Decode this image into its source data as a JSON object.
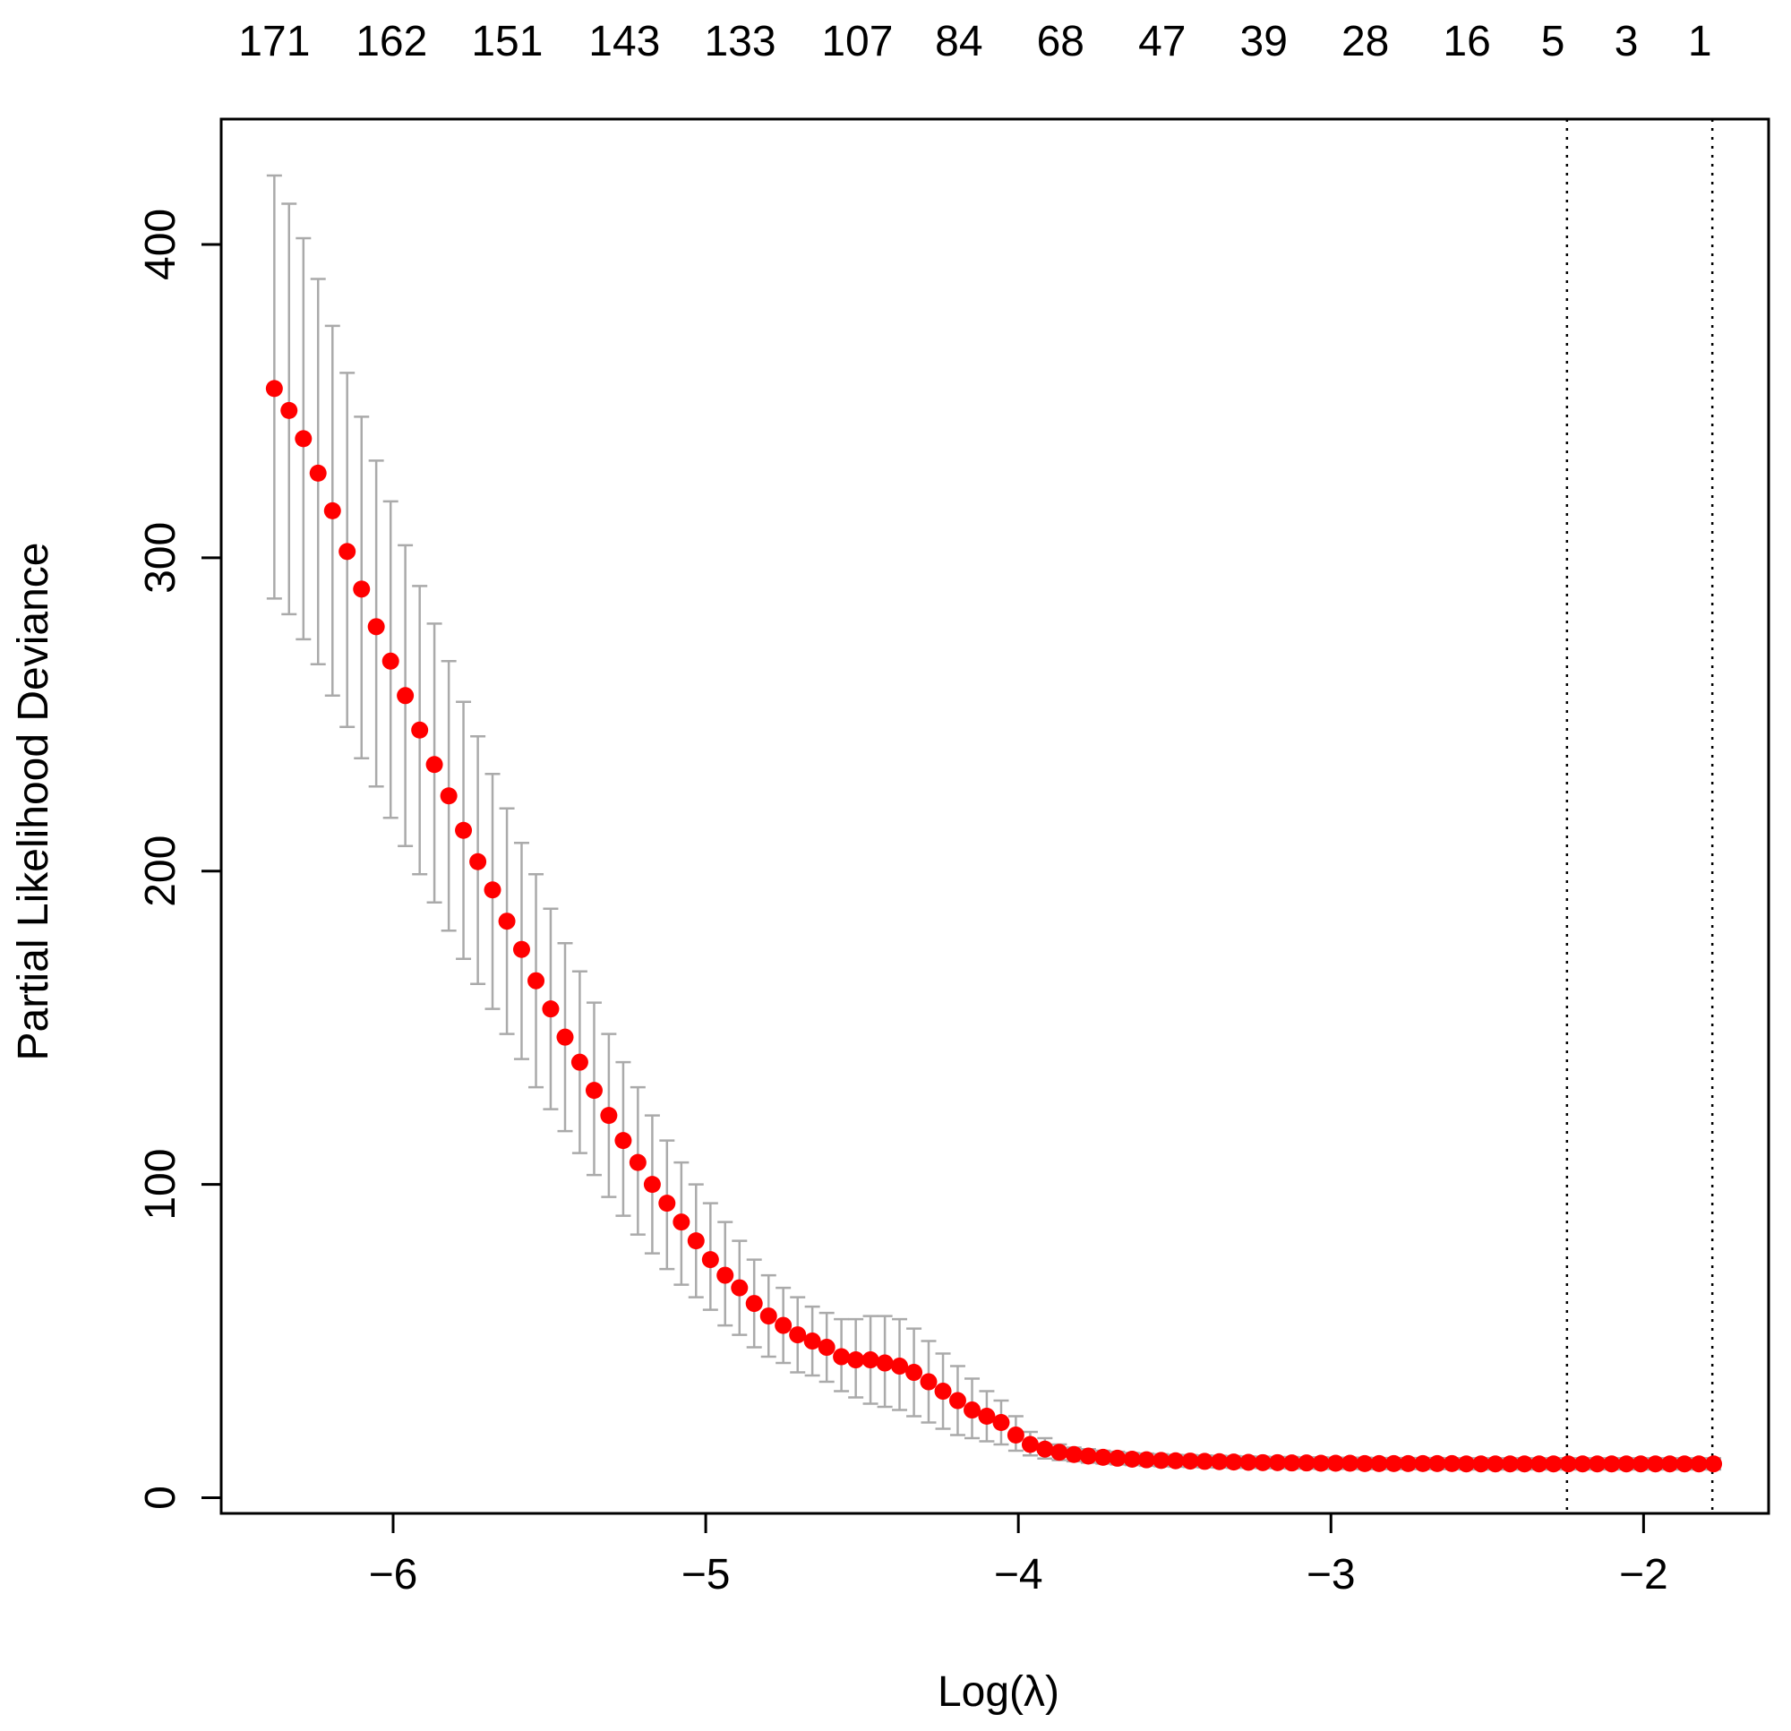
{
  "chart_data": {
    "type": "scatter",
    "title": "",
    "xlabel": "Log(λ)",
    "ylabel": "Partial Likelihood Deviance",
    "xlim": [
      -6.55,
      -1.6
    ],
    "ylim": [
      -5,
      440
    ],
    "x_ticks": [
      {
        "value": -6,
        "label": "−6"
      },
      {
        "value": -5,
        "label": "−5"
      },
      {
        "value": -4,
        "label": "−4"
      },
      {
        "value": -3,
        "label": "−3"
      },
      {
        "value": -2,
        "label": "−2"
      }
    ],
    "y_ticks": [
      {
        "value": 0,
        "label": "0"
      },
      {
        "value": 100,
        "label": "100"
      },
      {
        "value": 200,
        "label": "200"
      },
      {
        "value": 300,
        "label": "300"
      },
      {
        "value": 400,
        "label": "400"
      }
    ],
    "top_labels": [
      {
        "x": -6.38,
        "label": "171"
      },
      {
        "x": -6.005,
        "label": "162"
      },
      {
        "x": -5.635,
        "label": "151"
      },
      {
        "x": -5.26,
        "label": "143"
      },
      {
        "x": -4.89,
        "label": "133"
      },
      {
        "x": -4.515,
        "label": "107"
      },
      {
        "x": -4.19,
        "label": "84"
      },
      {
        "x": -3.865,
        "label": "68"
      },
      {
        "x": -3.54,
        "label": "47"
      },
      {
        "x": -3.215,
        "label": "39"
      },
      {
        "x": -2.89,
        "label": "28"
      },
      {
        "x": -2.565,
        "label": "16"
      },
      {
        "x": -2.29,
        "label": "5"
      },
      {
        "x": -2.055,
        "label": "3"
      },
      {
        "x": -1.82,
        "label": "1"
      }
    ],
    "vlines": [
      -2.245,
      -1.78
    ],
    "series": [
      {
        "x": [
          -6.38,
          -6.333,
          -6.287,
          -6.24,
          -6.194,
          -6.147,
          -6.101,
          -6.054,
          -6.008,
          -5.961,
          -5.915,
          -5.868,
          -5.822,
          -5.775,
          -5.729,
          -5.682,
          -5.636,
          -5.589,
          -5.543,
          -5.496,
          -5.45,
          -5.403,
          -5.357,
          -5.31,
          -5.264,
          -5.217,
          -5.171,
          -5.124,
          -5.078,
          -5.031,
          -4.985,
          -4.938,
          -4.892,
          -4.845,
          -4.799,
          -4.752,
          -4.706,
          -4.659,
          -4.613,
          -4.566,
          -4.52,
          -4.473,
          -4.427,
          -4.38,
          -4.334,
          -4.287,
          -4.241,
          -4.194,
          -4.148,
          -4.101,
          -4.055,
          -4.008,
          -3.962,
          -3.915,
          -3.869,
          -3.822,
          -3.776,
          -3.729,
          -3.683,
          -3.636,
          -3.59,
          -3.543,
          -3.497,
          -3.45,
          -3.404,
          -3.357,
          -3.311,
          -3.264,
          -3.218,
          -3.171,
          -3.125,
          -3.078,
          -3.032,
          -2.985,
          -2.939,
          -2.892,
          -2.846,
          -2.799,
          -2.753,
          -2.706,
          -2.66,
          -2.613,
          -2.567,
          -2.52,
          -2.474,
          -2.427,
          -2.381,
          -2.334,
          -2.288,
          -2.241,
          -2.195,
          -2.148,
          -2.102,
          -2.055,
          -2.009,
          -1.962,
          -1.916,
          -1.869,
          -1.823,
          -1.776
        ],
        "y": [
          354,
          347,
          338,
          327,
          315,
          302,
          290,
          278,
          267,
          256,
          245,
          234,
          224,
          213,
          203,
          194,
          184,
          175,
          165,
          156,
          147,
          139,
          130,
          122,
          114,
          107,
          100,
          94,
          88,
          82,
          76,
          71,
          67,
          62,
          58,
          55,
          52,
          50,
          48,
          45,
          44,
          44,
          43,
          42,
          40,
          37,
          34,
          31,
          28,
          26,
          24,
          20,
          17,
          15.5,
          14.5,
          13.8,
          13.3,
          12.9,
          12.6,
          12.3,
          12.1,
          11.9,
          11.8,
          11.7,
          11.6,
          11.5,
          11.4,
          11.3,
          11.2,
          11.2,
          11.1,
          11.1,
          11.0,
          11.0,
          11.0,
          10.9,
          10.9,
          10.9,
          10.9,
          10.9,
          10.9,
          10.9,
          10.8,
          10.8,
          10.8,
          10.8,
          10.8,
          10.8,
          10.8,
          10.8,
          10.8,
          10.8,
          10.8,
          10.8,
          10.8,
          10.8,
          10.8,
          10.8,
          10.8,
          10.8
        ],
        "upper": [
          422,
          413,
          402,
          389,
          374,
          359,
          345,
          331,
          318,
          304,
          291,
          279,
          267,
          254,
          243,
          231,
          220,
          209,
          199,
          188,
          177,
          168,
          158,
          148,
          139,
          131,
          122,
          114,
          107,
          100,
          94,
          88,
          82,
          76,
          71,
          67,
          64,
          61,
          59,
          57,
          57,
          58,
          58,
          57,
          54,
          50,
          46,
          42,
          38,
          34,
          31,
          26,
          21,
          19,
          17,
          16,
          15.5,
          15,
          14.7,
          14.3,
          14.1,
          13.9,
          13.7,
          13.6,
          13.5,
          13.4,
          13.3,
          13.2,
          13.1,
          13.0,
          13.0,
          12.9,
          12.9,
          12.8,
          12.8,
          12.8,
          12.7,
          12.7,
          12.7,
          12.7,
          12.7,
          12.6,
          12.6,
          12.6,
          12.6,
          12.6,
          12.6,
          12.6,
          12.6,
          12.6,
          12.6,
          12.6,
          12.6,
          12.6,
          12.6,
          12.6,
          12.6,
          12.6,
          12.6,
          12.6
        ],
        "lower": [
          287,
          282,
          274,
          266,
          256,
          246,
          236,
          227,
          217,
          208,
          199,
          190,
          181,
          172,
          164,
          156,
          148,
          140,
          131,
          124,
          117,
          110,
          103,
          96,
          90,
          84,
          78,
          73,
          68,
          64,
          60,
          55,
          52,
          48,
          45,
          43,
          40,
          39,
          37,
          34,
          32,
          30,
          29,
          28,
          26,
          24,
          22,
          20,
          19,
          18,
          17,
          15,
          13.5,
          12.5,
          12,
          11.6,
          11.2,
          10.9,
          10.6,
          10.4,
          10.2,
          10.0,
          9.9,
          9.8,
          9.7,
          9.6,
          9.5,
          9.5,
          9.4,
          9.4,
          9.3,
          9.3,
          9.2,
          9.2,
          9.2,
          9.1,
          9.1,
          9.1,
          9.1,
          9.1,
          9.1,
          9.1,
          9.0,
          9.0,
          9.0,
          9.0,
          9.0,
          9.0,
          9.0,
          9.0,
          9.0,
          9.0,
          9.0,
          9.0,
          9.0,
          9.0,
          9.0,
          9.0,
          9.0,
          9.0
        ]
      }
    ],
    "grid": false,
    "legend": "none"
  },
  "colors": {
    "point": "#ff0000",
    "errorbar": "#aaaaaa",
    "axis": "#000000",
    "vline": "#000000"
  }
}
